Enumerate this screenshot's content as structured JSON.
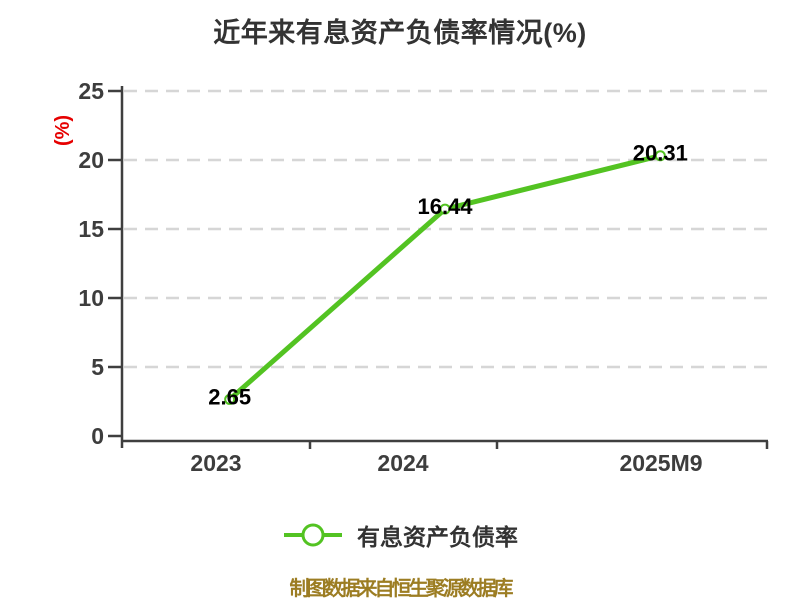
{
  "title": "近年来有息资产负债率情况(%)",
  "y_axis": {
    "label": "(%)",
    "label_color": "#e60000",
    "ticks": [
      "0",
      "5",
      "10",
      "15",
      "20",
      "25"
    ]
  },
  "x_axis": {
    "labels": [
      "2023",
      "2024",
      "2025M9"
    ]
  },
  "chart_data": {
    "type": "line",
    "title": "近年来有息资产负债率情况(%)",
    "categories": [
      "2023",
      "2024",
      "2025M9"
    ],
    "series": [
      {
        "name": "有息资产负债率",
        "values": [
          2.65,
          16.44,
          20.31
        ]
      }
    ],
    "value_labels": [
      "2.65",
      "16.44",
      "20.31"
    ],
    "xlabel": "",
    "ylabel": "(%)",
    "ylim": [
      0,
      25
    ],
    "ytick_step": 5,
    "grid": "horizontal-dashed",
    "legend_position": "bottom",
    "colors": {
      "line": "#53c322",
      "marker_fill": "#ffffff",
      "grid": "#d6d6d6",
      "axis": "#3f3f3f",
      "tick_text": "#3d3d3d",
      "value_text": "#000000"
    }
  },
  "legend": {
    "label": "有息资产负债率"
  },
  "footer": {
    "text": "制图数据来自恒生聚源数据库",
    "color": "#9c7d23"
  }
}
